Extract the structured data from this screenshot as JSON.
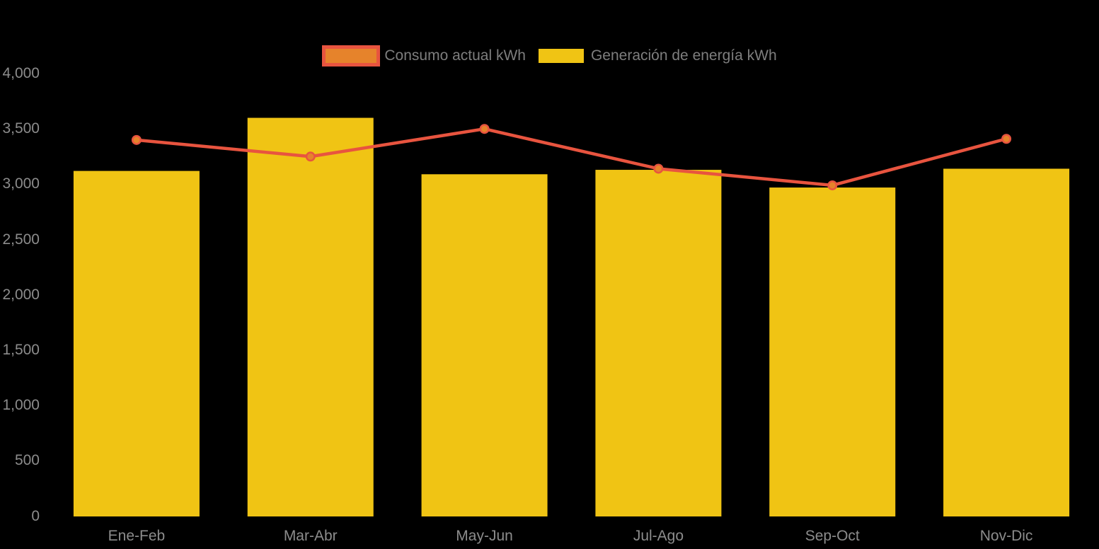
{
  "page": {
    "background": "#000000"
  },
  "chart_data": {
    "type": "combo",
    "title": "",
    "xlabel": "",
    "ylabel": "",
    "categories": [
      "Ene-Feb",
      "Mar-Abr",
      "May-Jun",
      "Jul-Ago",
      "Sep-Oct",
      "Nov-Dic"
    ],
    "series": [
      {
        "name": "Consumo actual kWh",
        "type": "line",
        "color": "#E8543F",
        "marker_fill": "#E6832B",
        "values": [
          3400,
          3250,
          3500,
          3140,
          2990,
          3410
        ]
      },
      {
        "name": "Generación de energía kWh",
        "type": "bar",
        "color": "#F0C414",
        "values": [
          3120,
          3600,
          3090,
          3130,
          2970,
          3140
        ]
      }
    ],
    "ylim": [
      0,
      4000
    ],
    "ytick_step": 500,
    "ytick_labels": [
      "0",
      "500",
      "1,000",
      "1,500",
      "2,000",
      "2,500",
      "3,000",
      "3,500",
      "4,000"
    ],
    "grid": false,
    "legend_position": "top",
    "axis_text_color": "#8C8C8C",
    "legend_text_color": "#7E7E7E"
  }
}
